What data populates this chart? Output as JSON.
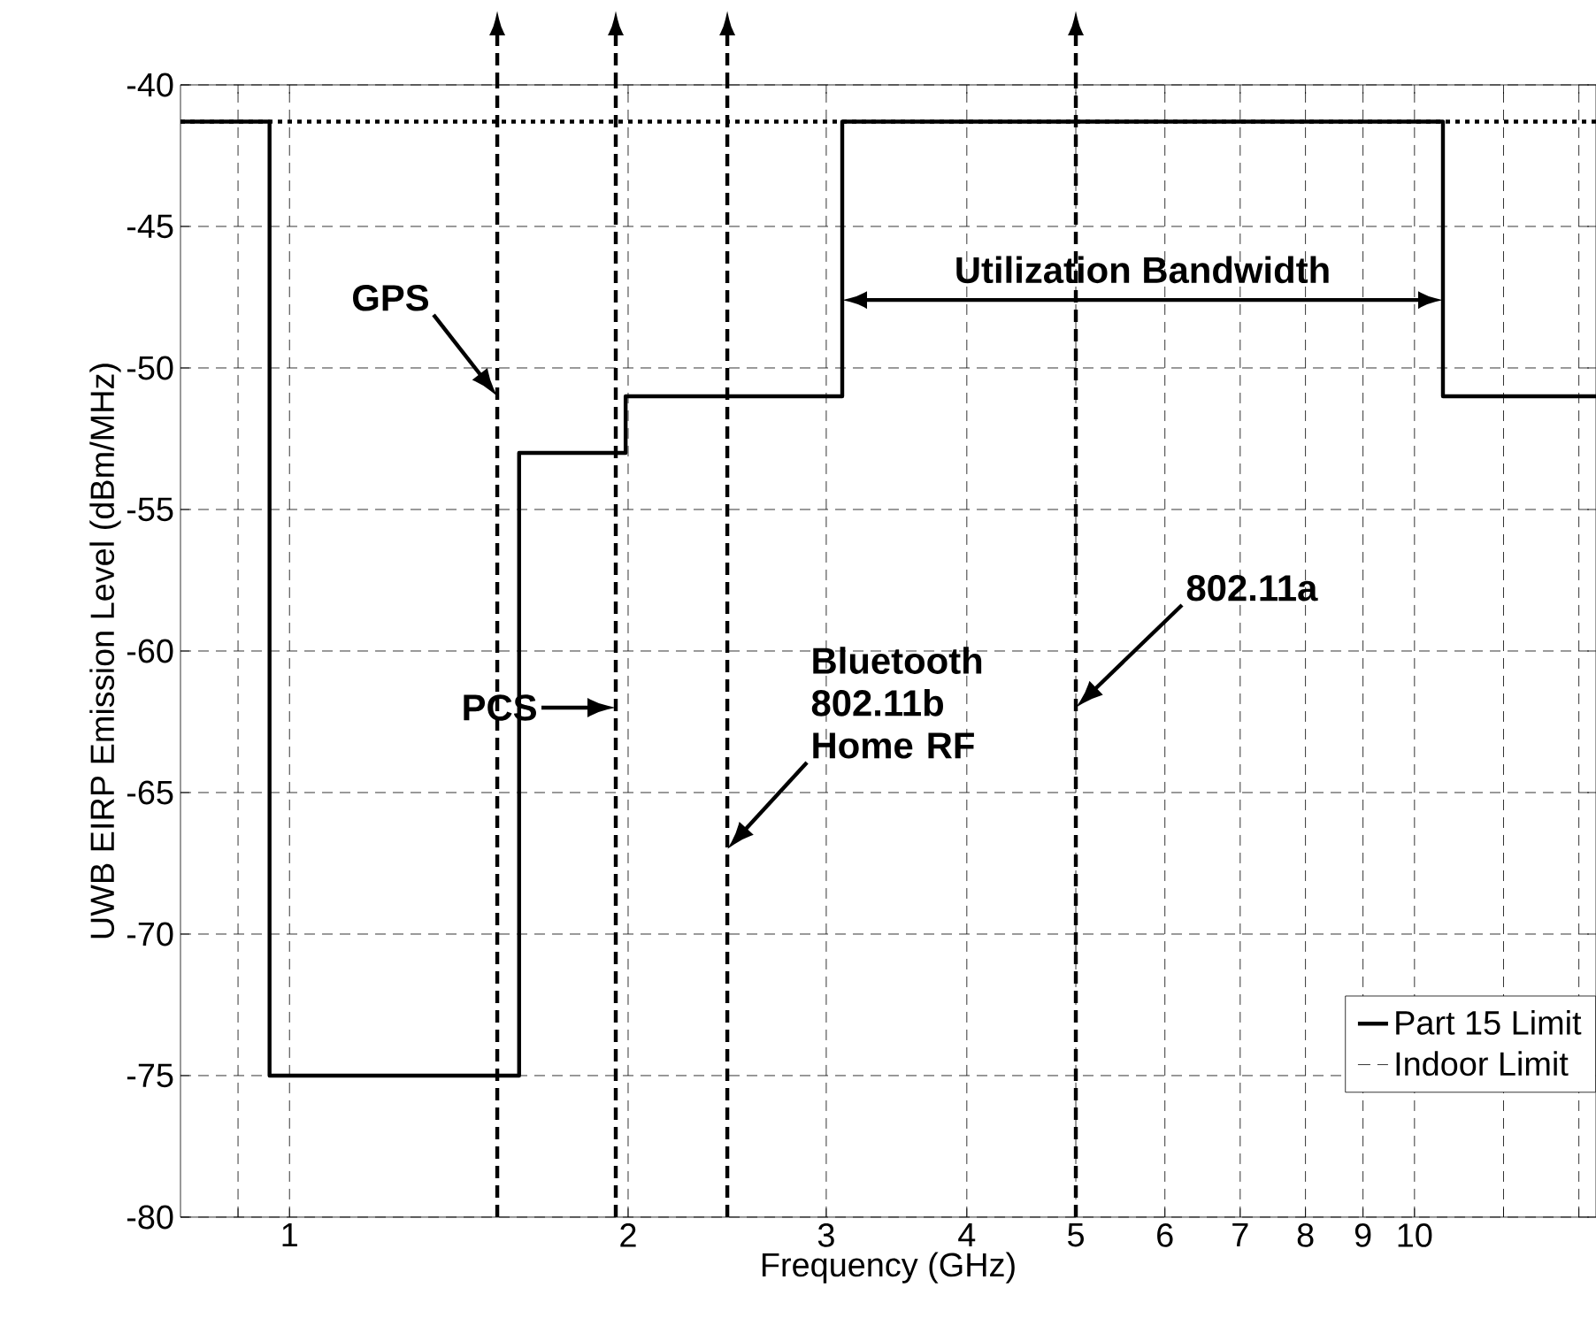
{
  "chart_data": {
    "type": "step",
    "xlabel": "Frequency (GHz)",
    "ylabel": "UWB EIRP Emission Level (dBm/MHz)",
    "log": "x",
    "xlim": [
      0.8,
      14.5
    ],
    "ylim": [
      -80,
      -40
    ],
    "xticks": [
      {
        "value": 0.9,
        "label": null
      },
      1,
      2,
      3,
      4,
      5,
      6,
      7,
      8,
      9,
      10,
      {
        "value": 12,
        "label": null
      },
      {
        "value": 14,
        "label": null
      }
    ],
    "yticks": [
      -80,
      -75,
      -70,
      -65,
      -60,
      -55,
      -50,
      -45,
      -40
    ],
    "grid": true,
    "legend": "bottom right",
    "series": [
      {
        "name": "Part 15 Limit",
        "color": "#000000",
        "line_style": "solid",
        "x": [
          0.8,
          0.96,
          1.6,
          1.99,
          3.1,
          10.6,
          14.5
        ],
        "values": [
          -41.3,
          -75,
          -53,
          -51,
          -41.3,
          -51,
          -51
        ]
      },
      {
        "name": "Indoor Limit",
        "color": "#000000",
        "line_style": "dashed"
      }
    ],
    "ref_lines": [
      {
        "axis": "y",
        "value": -41.3,
        "line_style": "dotted"
      },
      {
        "axis": "x",
        "value": 1.53,
        "line_style": "dashed"
      },
      {
        "axis": "x",
        "value": 1.95,
        "line_style": "dashed"
      },
      {
        "axis": "x",
        "value": 2.45,
        "line_style": "dashed"
      },
      {
        "axis": "x",
        "value": 5,
        "line_style": "dashed"
      }
    ],
    "annotations": [
      "GPS",
      "PCS",
      "Bluetooth 802.11b Home RF",
      "802.11a",
      "Utilization Bandwidth"
    ]
  }
}
